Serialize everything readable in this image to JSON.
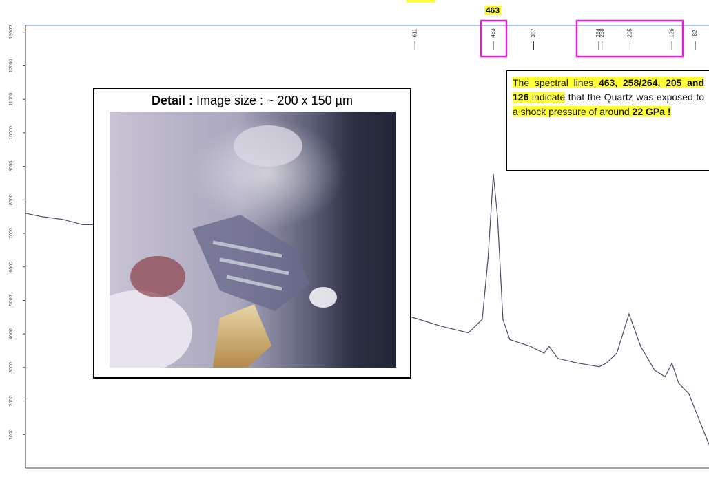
{
  "chart_data": {
    "type": "line",
    "x": [
      1346,
      1316,
      1277,
      1238,
      1219,
      939,
      620,
      562,
      510,
      484,
      473,
      463,
      455,
      445,
      432,
      393,
      367,
      358,
      341,
      302,
      263,
      250,
      230,
      207,
      185,
      159,
      139,
      126,
      113,
      94,
      74,
      56
    ],
    "values": [
      7600,
      7500,
      7419,
      7258,
      7258,
      5850,
      4516,
      4234,
      4032,
      4435,
      6250,
      8770,
      7460,
      4435,
      3830,
      3629,
      3427,
      3629,
      3266,
      3125,
      3024,
      3125,
      3427,
      4597,
      3629,
      2923,
      2722,
      3125,
      2520,
      2218,
      1411,
      706
    ],
    "color": "#4a4a66",
    "xlim": [
      1346,
      56
    ],
    "ylim": [
      0,
      13200
    ],
    "yticks": [
      1000,
      2000,
      3000,
      4000,
      5000,
      6000,
      7000,
      8000,
      9000,
      10000,
      11000,
      12000,
      13000
    ],
    "peak_labels": [
      611,
      463,
      387,
      264,
      258,
      205,
      126,
      82
    ],
    "highlight_label": 463,
    "annotation": [
      {
        "text": "The spectral lines ",
        "highlight": true,
        "bold": false
      },
      {
        "text": "463, 258/264,",
        "highlight": true,
        "bold": true
      },
      {
        "text": " 205 and 126",
        "highlight": true,
        "bold": true
      },
      {
        "text": " indicate",
        "highlight": true,
        "bold": false
      },
      {
        "text": " that the Quartz was exposed to ",
        "highlight": false,
        "bold": false
      },
      {
        "text": "a shock",
        "highlight": true,
        "bold": false
      },
      {
        "text": " pressure of around ",
        "highlight": true,
        "bold": false
      },
      {
        "text": "22 GPa !",
        "highlight": true,
        "bold": true
      }
    ],
    "inset_caption": {
      "bold": "Detail :",
      "text": " Image size :  ~ 200 x 150 µm"
    }
  }
}
